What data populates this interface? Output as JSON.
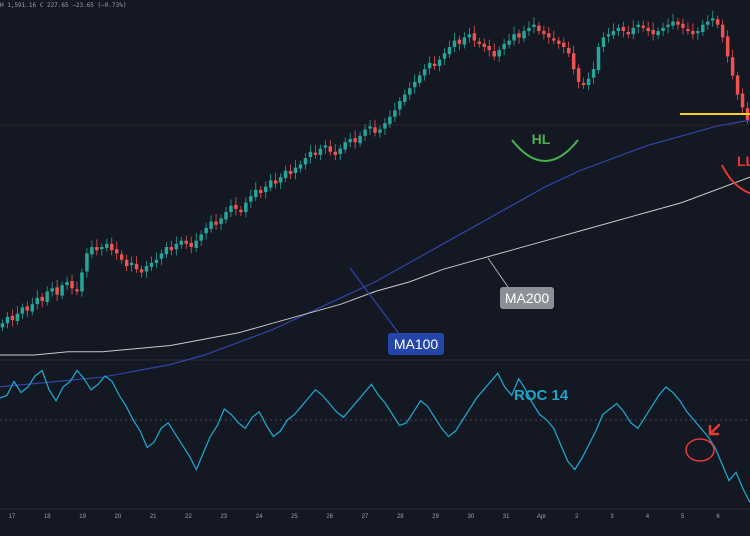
{
  "header": {
    "ohlc_line": "H 1,591.16 C 227.65 −23.65 (−0.73%)"
  },
  "colors": {
    "background": "#141823",
    "bull": "#26a69a",
    "bear": "#ef5350",
    "ma100": "#2f45a8",
    "ma200": "#c9c9c9",
    "roc": "#1fa3c8",
    "hl_arc": "#4caf50",
    "ll_arc": "#e53935",
    "support_line": "#f2d21b",
    "divider": "#2a2e39"
  },
  "chart_data": [
    {
      "type": "candlestick",
      "panel": "price",
      "x_ticks": [
        "17",
        "18",
        "19",
        "20",
        "21",
        "22",
        "23",
        "24",
        "25",
        "26",
        "27",
        "28",
        "29",
        "30",
        "31",
        "Apr",
        "2",
        "3",
        "4",
        "5",
        "6"
      ],
      "series": [
        {
          "name": "",
          "type": "candlestick",
          "candles_ocs": "estimated close levels, relative price",
          "close": [
            50,
            52,
            51,
            53,
            55,
            54,
            56,
            58,
            57,
            60,
            61,
            59,
            62,
            63,
            61,
            60,
            66,
            72,
            74,
            73,
            74,
            75,
            73,
            72,
            70,
            68,
            69,
            67,
            66,
            68,
            69,
            70,
            72,
            74,
            73,
            75,
            76,
            75,
            74,
            76,
            78,
            80,
            82,
            81,
            83,
            85,
            87,
            86,
            85,
            88,
            90,
            92,
            91,
            93,
            95,
            94,
            96,
            98,
            97,
            99,
            100,
            102,
            104,
            103,
            105,
            106,
            104,
            103,
            105,
            107,
            108,
            107,
            109,
            111,
            112,
            110,
            111,
            113,
            115,
            117,
            120,
            122,
            124,
            126,
            128,
            130,
            132,
            131,
            133,
            135,
            137,
            139,
            138,
            140,
            141,
            139,
            138,
            137,
            136,
            134,
            136,
            138,
            139,
            141,
            140,
            142,
            143,
            144,
            142,
            141,
            140,
            139,
            138,
            137,
            135,
            130,
            126,
            125,
            127,
            130,
            137,
            140,
            141,
            142,
            143,
            142,
            141,
            143,
            144,
            143,
            142,
            141,
            142,
            143,
            144,
            145,
            144,
            143,
            142,
            141,
            142,
            144,
            145,
            146,
            144,
            140,
            134,
            128,
            122,
            118,
            114
          ]
        },
        {
          "name": "MA100",
          "type": "line",
          "values": [
            30,
            31,
            32,
            33,
            35,
            37,
            40,
            44,
            48,
            53,
            58,
            63,
            69,
            75,
            81,
            87,
            93,
            98,
            102,
            106,
            109,
            112,
            114
          ]
        },
        {
          "name": "MA200",
          "type": "line",
          "values": [
            40,
            40,
            41,
            41,
            42,
            43,
            45,
            47,
            50,
            53,
            56,
            60,
            63,
            67,
            70,
            73,
            76,
            79,
            82,
            85,
            88,
            92,
            96
          ]
        }
      ],
      "annotations": [
        "HL",
        "LL",
        "MA100",
        "MA200"
      ],
      "grid": false
    },
    {
      "type": "line",
      "panel": "indicator",
      "title": "ROC 14",
      "series": [
        {
          "name": "ROC 14",
          "values": [
            8,
            9,
            14,
            10,
            12,
            16,
            18,
            11,
            7,
            12,
            14,
            18,
            15,
            11,
            13,
            16,
            14,
            9,
            5,
            0,
            -4,
            -10,
            -8,
            -3,
            -1,
            -5,
            -9,
            -13,
            -18,
            -12,
            -6,
            -2,
            4,
            2,
            -1,
            -3,
            1,
            3,
            -2,
            -6,
            -4,
            0,
            2,
            5,
            8,
            11,
            9,
            6,
            3,
            1,
            4,
            7,
            10,
            13,
            9,
            6,
            2,
            -2,
            -1,
            3,
            7,
            5,
            1,
            -3,
            -6,
            -4,
            0,
            4,
            8,
            11,
            14,
            17,
            12,
            9,
            15,
            11,
            6,
            2,
            0,
            -3,
            -9,
            -15,
            -18,
            -14,
            -9,
            -4,
            2,
            4,
            6,
            3,
            -1,
            -3,
            1,
            5,
            9,
            12,
            10,
            7,
            3,
            0,
            -3,
            -6,
            -10,
            -16,
            -22,
            -19,
            -25,
            -30
          ]
        }
      ],
      "zero_line": true
    }
  ]
}
